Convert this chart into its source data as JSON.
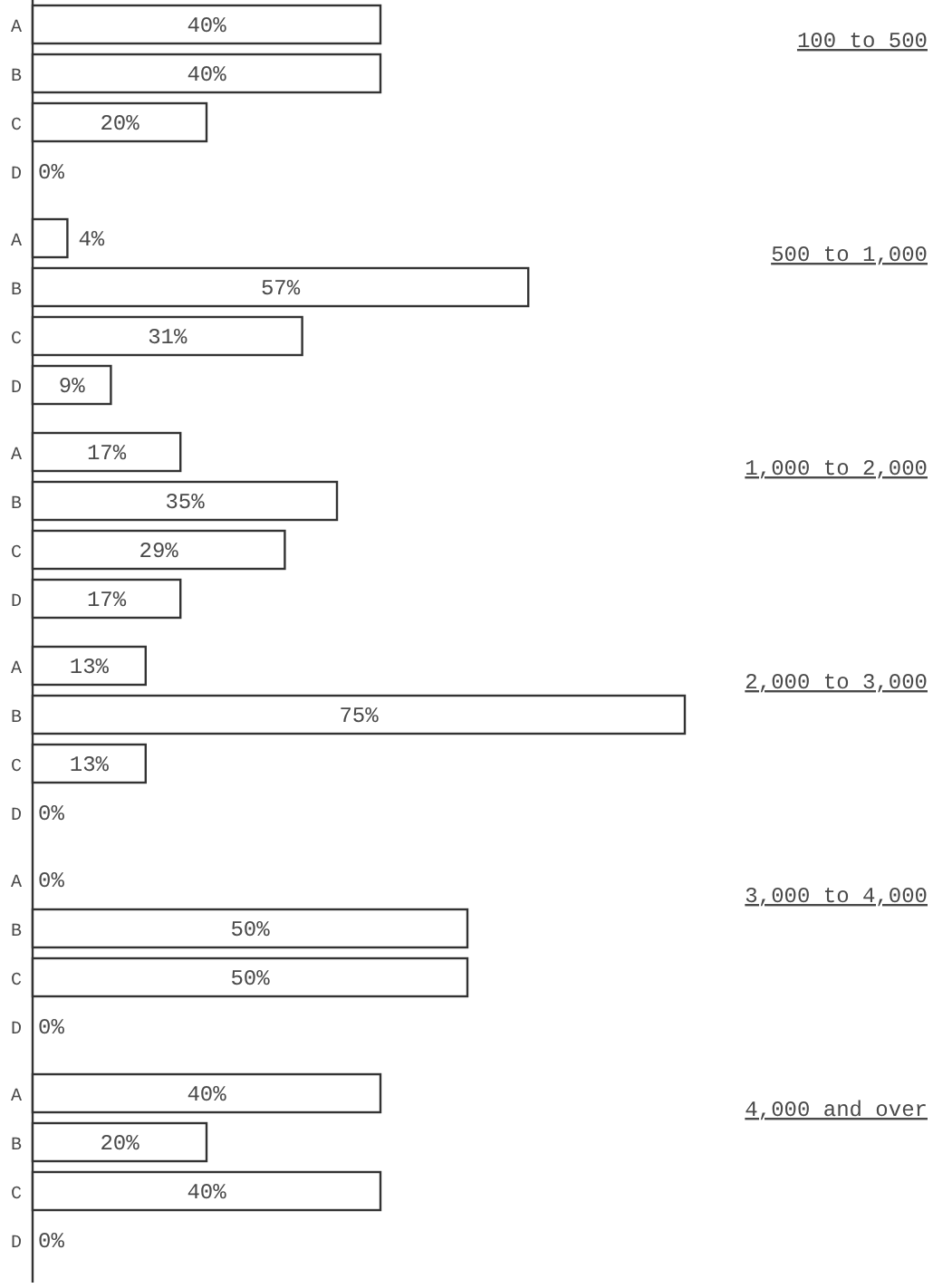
{
  "chart_data": {
    "type": "bar",
    "orientation": "horizontal",
    "categories": [
      "A",
      "B",
      "C",
      "D",
      "A",
      "B",
      "C",
      "D",
      "A",
      "B",
      "C",
      "D",
      "A",
      "B",
      "C",
      "D",
      "A",
      "B",
      "C",
      "D",
      "A",
      "B",
      "C",
      "D"
    ],
    "values": [
      40,
      40,
      20,
      0,
      4,
      57,
      31,
      9,
      17,
      35,
      29,
      17,
      13,
      75,
      13,
      0,
      0,
      50,
      50,
      0,
      40,
      20,
      40,
      0
    ],
    "value_labels": [
      "40%",
      "40%",
      "20%",
      "0%",
      "4%",
      "57%",
      "31%",
      "9%",
      "17%",
      "35%",
      "29%",
      "17%",
      "13%",
      "75%",
      "13%",
      "0%",
      "0%",
      "50%",
      "50%",
      "0%",
      "40%",
      "20%",
      "40%",
      "0%"
    ],
    "annotations": [
      "100 to 500",
      "500 to 1,000",
      "1,000 to 2,000",
      "2,000 to 3,000",
      "3,000 to 4,000",
      "4,000 and over"
    ]
  }
}
